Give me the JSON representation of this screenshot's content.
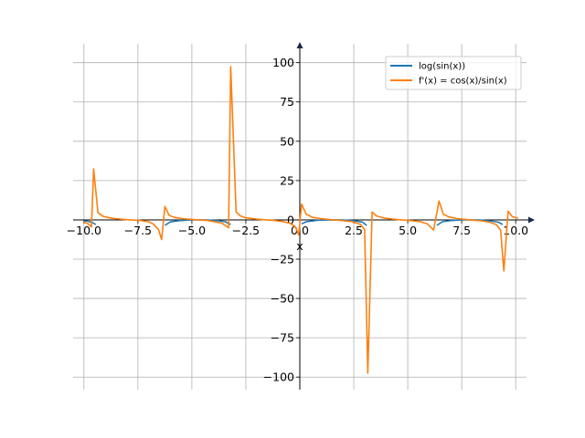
{
  "chart_data": {
    "type": "line",
    "title": "",
    "xlabel": "x",
    "ylabel": "",
    "xlim": [
      -10.5,
      10.5
    ],
    "ylim": [
      -108,
      112
    ],
    "grid": true,
    "legend_position": "upper-right",
    "x_ticks": [
      -10.0,
      -7.5,
      -5.0,
      -2.5,
      0.0,
      2.5,
      5.0,
      7.5,
      10.0
    ],
    "x_tick_labels": [
      "−10.0",
      "−7.5",
      "−5.0",
      "−2.5",
      "0.0",
      "2.5",
      "5.0",
      "7.5",
      "10.0"
    ],
    "y_ticks": [
      -100,
      -75,
      -50,
      -25,
      0,
      25,
      50,
      75,
      100
    ],
    "y_tick_labels": [
      "−100",
      "−75",
      "−50",
      "−25",
      "0",
      "25",
      "50",
      "75",
      "100"
    ],
    "series": [
      {
        "name": "log(sin(x))",
        "color": "#1f77b4",
        "segments": [
          [
            [
              -10.0,
              -0.6
            ],
            [
              -9.8,
              -0.9
            ],
            [
              -9.6,
              -1.8
            ],
            [
              -9.45,
              -3.0
            ]
          ],
          [
            [
              -6.25,
              -3.5
            ],
            [
              -6.0,
              -1.3
            ],
            [
              -5.6,
              -0.5
            ],
            [
              -5.0,
              -0.04
            ],
            [
              -4.71,
              0.0
            ],
            [
              -4.3,
              -0.09
            ],
            [
              -3.8,
              -0.5
            ],
            [
              -3.45,
              -1.2
            ],
            [
              -3.2,
              -3.0
            ]
          ],
          [
            [
              0.08,
              -2.5
            ],
            [
              0.3,
              -1.2
            ],
            [
              0.8,
              -0.33
            ],
            [
              1.2,
              -0.07
            ],
            [
              1.57,
              0.0
            ],
            [
              2.0,
              -0.1
            ],
            [
              2.5,
              -0.51
            ],
            [
              2.9,
              -1.4
            ],
            [
              3.1,
              -3.5
            ]
          ],
          [
            [
              6.35,
              -3.5
            ],
            [
              6.6,
              -1.2
            ],
            [
              7.0,
              -0.43
            ],
            [
              7.5,
              -0.06
            ],
            [
              7.85,
              0.0
            ],
            [
              8.3,
              -0.1
            ],
            [
              8.8,
              -0.6
            ],
            [
              9.2,
              -1.5
            ],
            [
              9.4,
              -3.0
            ]
          ]
        ]
      },
      {
        "name": "f'(x) = cos(x)/sin(x)",
        "color": "#ff7f0e",
        "points": [
          [
            -10.0,
            -1.5
          ],
          [
            -9.8,
            -2.5
          ],
          [
            -9.65,
            -4.5
          ],
          [
            -9.55,
            32.5
          ],
          [
            -9.35,
            4.5
          ],
          [
            -9.1,
            2.2
          ],
          [
            -8.7,
            1.0
          ],
          [
            -8.2,
            0.4
          ],
          [
            -7.85,
            0.0
          ],
          [
            -7.4,
            -0.4
          ],
          [
            -7.0,
            -1.2
          ],
          [
            -6.8,
            -2.5
          ],
          [
            -6.55,
            -6.0
          ],
          [
            -6.4,
            -12.5
          ],
          [
            -6.25,
            8.5
          ],
          [
            -6.05,
            2.8
          ],
          [
            -5.8,
            1.6
          ],
          [
            -5.4,
            0.7
          ],
          [
            -5.0,
            0.3
          ],
          [
            -4.71,
            0.0
          ],
          [
            -4.3,
            -0.4
          ],
          [
            -3.9,
            -1.3
          ],
          [
            -3.6,
            -2.2
          ],
          [
            -3.3,
            -5.0
          ],
          [
            -3.2,
            97.5
          ],
          [
            -2.95,
            5.0
          ],
          [
            -2.75,
            2.5
          ],
          [
            -2.5,
            1.3
          ],
          [
            -2.0,
            0.5
          ],
          [
            -1.57,
            0.0
          ],
          [
            -1.2,
            -0.4
          ],
          [
            -0.8,
            -1.0
          ],
          [
            -0.45,
            -2.2
          ],
          [
            -0.2,
            -4.5
          ],
          [
            -0.05,
            -9.5
          ],
          [
            0.08,
            10.0
          ],
          [
            0.3,
            3.5
          ],
          [
            0.6,
            1.6
          ],
          [
            1.0,
            0.7
          ],
          [
            1.57,
            0.0
          ],
          [
            2.0,
            -0.5
          ],
          [
            2.4,
            -1.1
          ],
          [
            2.8,
            -2.8
          ],
          [
            3.0,
            -6.0
          ],
          [
            3.15,
            -97.5
          ],
          [
            3.35,
            5.0
          ],
          [
            3.55,
            2.5
          ],
          [
            3.9,
            1.2
          ],
          [
            4.3,
            0.5
          ],
          [
            4.71,
            0.0
          ],
          [
            5.2,
            -0.5
          ],
          [
            5.6,
            -1.2
          ],
          [
            5.9,
            -2.5
          ],
          [
            6.2,
            -6.5
          ],
          [
            6.45,
            12.0
          ],
          [
            6.65,
            3.5
          ],
          [
            6.9,
            1.9
          ],
          [
            7.3,
            0.8
          ],
          [
            7.85,
            0.0
          ],
          [
            8.4,
            -0.6
          ],
          [
            8.8,
            -1.5
          ],
          [
            9.1,
            -3.0
          ],
          [
            9.3,
            -6.5
          ],
          [
            9.45,
            -32.5
          ],
          [
            9.65,
            5.5
          ],
          [
            9.85,
            2.0
          ],
          [
            10.1,
            1.0
          ]
        ]
      }
    ]
  }
}
